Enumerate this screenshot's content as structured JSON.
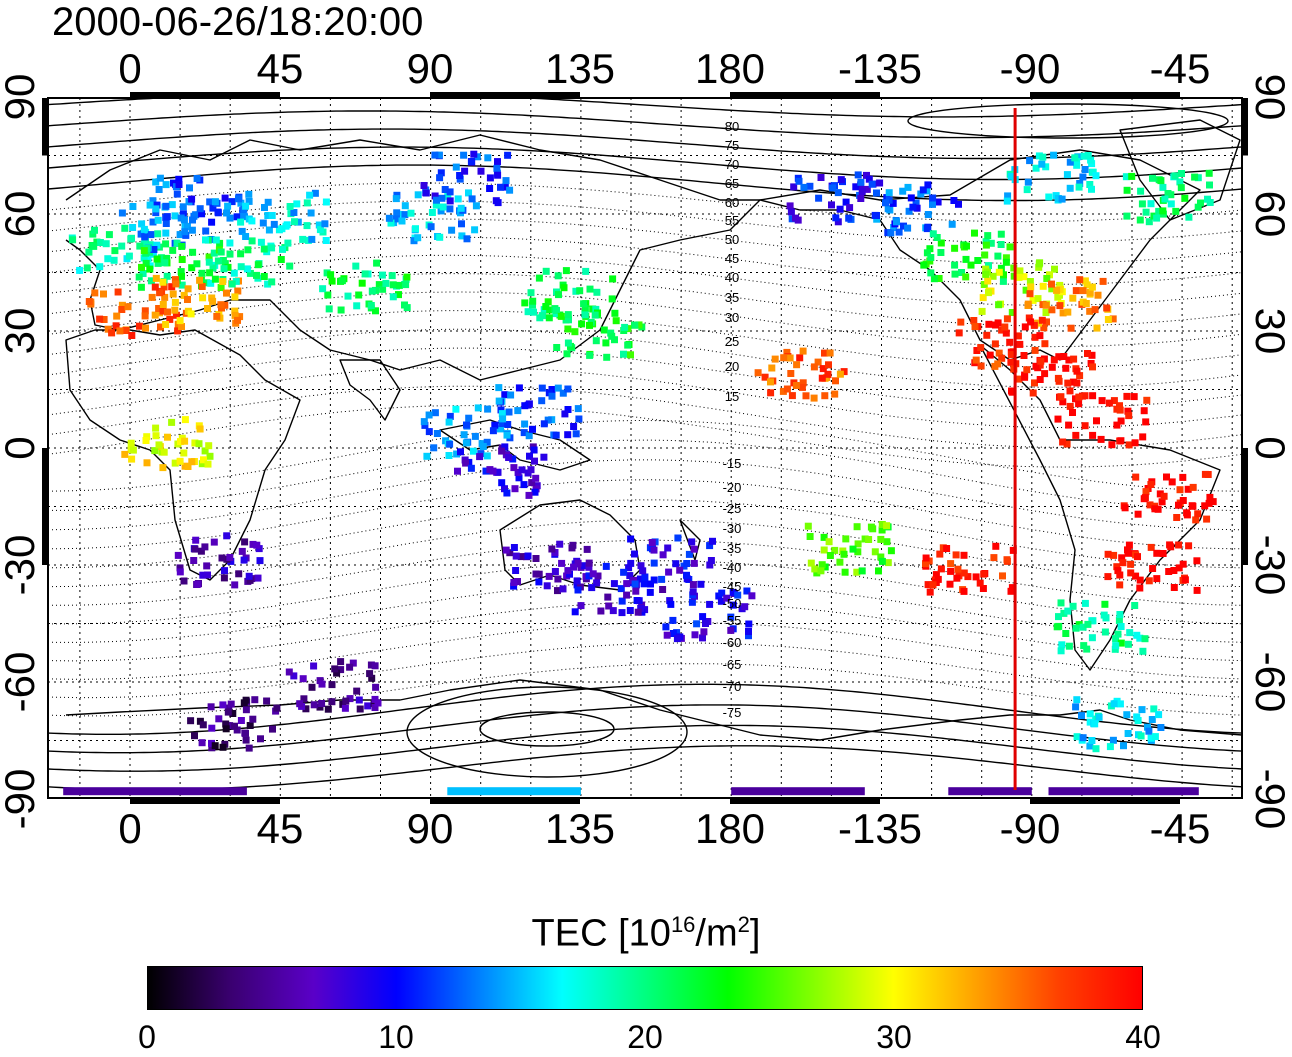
{
  "timestamp": "2000-06-26/18:20:00",
  "x_axis": {
    "ticks": [
      "0",
      "45",
      "90",
      "135",
      "180",
      "-135",
      "-90",
      "-45"
    ]
  },
  "y_axis": {
    "ticks": [
      "90",
      "60",
      "30",
      "0",
      "-30",
      "-60",
      "-90"
    ]
  },
  "contour_labels": {
    "north": [
      "80",
      "75",
      "70",
      "65",
      "60",
      "55",
      "50",
      "45",
      "40",
      "35",
      "30",
      "25",
      "20",
      "15"
    ],
    "south": [
      "-15",
      "-20",
      "-25",
      "-30",
      "-35",
      "-40",
      "-45",
      "-50",
      "-55",
      "-60",
      "-65",
      "-70",
      "-75"
    ]
  },
  "marker_line": {
    "longitude": -95,
    "color": "#e00000"
  },
  "colorbar": {
    "title_prefix": "TEC  [10",
    "title_exp1": "16",
    "title_mid": "/m",
    "title_exp2": "2",
    "title_suffix": "]",
    "min": 0,
    "max": 40,
    "ticks": [
      "0",
      "10",
      "20",
      "30",
      "40"
    ],
    "colors": [
      "#000000",
      "#3a0070",
      "#5a00c8",
      "#0000ff",
      "#0080ff",
      "#00ffff",
      "#00ff80",
      "#00ff00",
      "#80ff00",
      "#ffff00",
      "#ffa000",
      "#ff4000",
      "#ff0000"
    ]
  },
  "tec_clusters": [
    {
      "lon": -5,
      "lat": 52,
      "value": 19
    },
    {
      "lon": 10,
      "lat": 58,
      "value": 13
    },
    {
      "lon": 20,
      "lat": 64,
      "value": 12
    },
    {
      "lon": 15,
      "lat": 48,
      "value": 22
    },
    {
      "lon": 0,
      "lat": 36,
      "value": 36
    },
    {
      "lon": 20,
      "lat": 38,
      "value": 33
    },
    {
      "lon": 35,
      "lat": 48,
      "value": 20
    },
    {
      "lon": 45,
      "lat": 60,
      "value": 16
    },
    {
      "lon": 70,
      "lat": 42,
      "value": 21
    },
    {
      "lon": 90,
      "lat": 60,
      "value": 15
    },
    {
      "lon": 100,
      "lat": 70,
      "value": 11
    },
    {
      "lon": 130,
      "lat": 40,
      "value": 21
    },
    {
      "lon": 140,
      "lat": 30,
      "value": 22
    },
    {
      "lon": 120,
      "lat": 10,
      "value": 12
    },
    {
      "lon": 100,
      "lat": 5,
      "value": 14
    },
    {
      "lon": 110,
      "lat": -5,
      "value": 8
    },
    {
      "lon": 125,
      "lat": -30,
      "value": 7
    },
    {
      "lon": 145,
      "lat": -35,
      "value": 8
    },
    {
      "lon": 172,
      "lat": -42,
      "value": 9
    },
    {
      "lon": 160,
      "lat": -28,
      "value": 9
    },
    {
      "lon": 25,
      "lat": -28,
      "value": 6
    },
    {
      "lon": 10,
      "lat": 2,
      "value": 30
    },
    {
      "lon": 60,
      "lat": -60,
      "value": 5
    },
    {
      "lon": 30,
      "lat": -70,
      "value": 4
    },
    {
      "lon": -160,
      "lat": 20,
      "value": 36
    },
    {
      "lon": -150,
      "lat": 65,
      "value": 10
    },
    {
      "lon": -125,
      "lat": 62,
      "value": 12
    },
    {
      "lon": -110,
      "lat": 50,
      "value": 22
    },
    {
      "lon": -95,
      "lat": 42,
      "value": 28
    },
    {
      "lon": -80,
      "lat": 38,
      "value": 34
    },
    {
      "lon": -100,
      "lat": 28,
      "value": 38
    },
    {
      "lon": -85,
      "lat": 20,
      "value": 40
    },
    {
      "lon": -70,
      "lat": 8,
      "value": 40
    },
    {
      "lon": -50,
      "lat": -12,
      "value": 40
    },
    {
      "lon": -55,
      "lat": -30,
      "value": 40
    },
    {
      "lon": -70,
      "lat": -45,
      "value": 20
    },
    {
      "lon": -65,
      "lat": -70,
      "value": 16
    },
    {
      "lon": -50,
      "lat": 65,
      "value": 20
    },
    {
      "lon": -85,
      "lat": 70,
      "value": 16
    },
    {
      "lon": -110,
      "lat": -30,
      "value": 39
    },
    {
      "lon": -145,
      "lat": -25,
      "value": 25
    }
  ],
  "polar_strips": [
    {
      "lon_start": -20,
      "lon_end": 35,
      "lat": -88,
      "value": 5
    },
    {
      "lon_start": 95,
      "lon_end": 135,
      "lat": -88,
      "value": 15
    },
    {
      "lon_start": 180,
      "lon_end": -140,
      "lat": -88,
      "value": 5
    },
    {
      "lon_start": -115,
      "lon_end": -90,
      "lat": -88,
      "value": 5
    },
    {
      "lon_start": -85,
      "lon_end": -40,
      "lat": -88,
      "value": 5
    }
  ]
}
